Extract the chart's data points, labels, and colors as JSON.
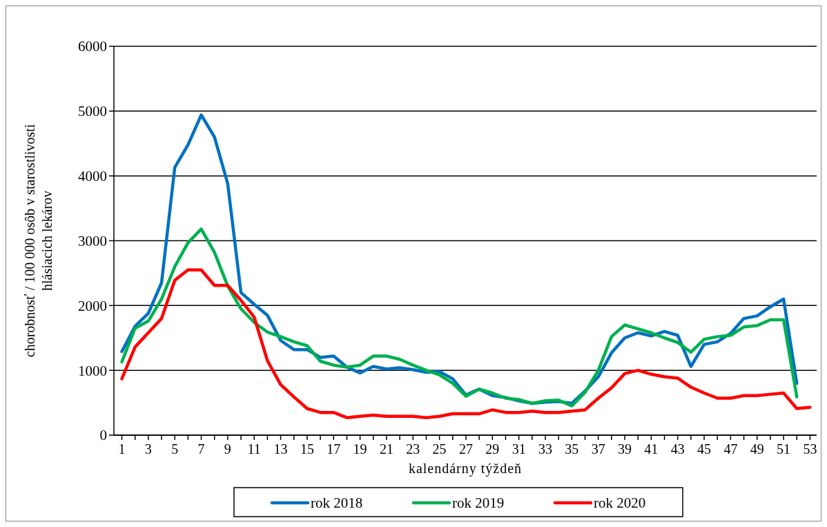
{
  "chart_data": {
    "type": "line",
    "xlabel": "kalendárny týždeň",
    "ylabel": "chorobnosť / 100 000 osôb v starostlivosti hlásiacich lekárov",
    "xlim": [
      0.4,
      53.5
    ],
    "xticks": [
      1,
      {
        "value": 2,
        "label": null
      },
      3,
      {
        "value": 4,
        "label": null
      },
      5,
      {
        "value": 6,
        "label": null
      },
      7,
      {
        "value": 8,
        "label": null
      },
      9,
      {
        "value": 10,
        "label": null
      },
      11,
      {
        "value": 12,
        "label": null
      },
      13,
      {
        "value": 14,
        "label": null
      },
      15,
      {
        "value": 16,
        "label": null
      },
      17,
      {
        "value": 18,
        "label": null
      },
      19,
      {
        "value": 20,
        "label": null
      },
      21,
      {
        "value": 22,
        "label": null
      },
      23,
      {
        "value": 24,
        "label": null
      },
      25,
      {
        "value": 26,
        "label": null
      },
      27,
      {
        "value": 28,
        "label": null
      },
      29,
      {
        "value": 30,
        "label": null
      },
      31,
      {
        "value": 32,
        "label": null
      },
      33,
      {
        "value": 34,
        "label": null
      },
      35,
      {
        "value": 36,
        "label": null
      },
      37,
      {
        "value": 38,
        "label": null
      },
      39,
      {
        "value": 40,
        "label": null
      },
      41,
      {
        "value": 42,
        "label": null
      },
      43,
      {
        "value": 44,
        "label": null
      },
      45,
      {
        "value": 46,
        "label": null
      },
      47,
      {
        "value": 48,
        "label": null
      },
      49,
      {
        "value": 50,
        "label": null
      },
      51,
      {
        "value": 52,
        "label": null
      },
      53
    ],
    "ylim": [
      0,
      6000
    ],
    "yticks": [
      0,
      1000,
      2000,
      3000,
      4000,
      5000,
      6000
    ],
    "grid": "y",
    "legend": "bottom",
    "series": [
      {
        "name": "rok 2018",
        "color": "#0070c0",
        "x": [
          1,
          2,
          3,
          4,
          5,
          6,
          7,
          8,
          9,
          10,
          11,
          12,
          13,
          14,
          15,
          16,
          17,
          18,
          19,
          20,
          21,
          22,
          23,
          24,
          25,
          26,
          27,
          28,
          29,
          30,
          31,
          32,
          33,
          34,
          35,
          36,
          37,
          38,
          39,
          40,
          41,
          42,
          43,
          44,
          45,
          46,
          47,
          48,
          49,
          50,
          51,
          52
        ],
        "values": [
          1290,
          1680,
          1880,
          2350,
          4130,
          4480,
          4940,
          4600,
          3880,
          2200,
          2020,
          1850,
          1460,
          1320,
          1320,
          1200,
          1220,
          1050,
          960,
          1060,
          1020,
          1040,
          1010,
          970,
          980,
          870,
          620,
          710,
          610,
          580,
          530,
          490,
          510,
          520,
          490,
          680,
          900,
          1270,
          1500,
          1580,
          1530,
          1600,
          1540,
          1060,
          1400,
          1440,
          1570,
          1800,
          1840,
          1980,
          2100,
          800
        ]
      },
      {
        "name": "rok 2019",
        "color": "#00b050",
        "x": [
          1,
          2,
          3,
          4,
          5,
          6,
          7,
          8,
          9,
          10,
          11,
          12,
          13,
          14,
          15,
          16,
          17,
          18,
          19,
          20,
          21,
          22,
          23,
          24,
          25,
          26,
          27,
          28,
          29,
          30,
          31,
          32,
          33,
          34,
          35,
          36,
          37,
          38,
          39,
          40,
          41,
          42,
          43,
          44,
          45,
          46,
          47,
          48,
          49,
          50,
          51,
          52
        ],
        "values": [
          1130,
          1650,
          1760,
          2100,
          2600,
          2970,
          3180,
          2820,
          2300,
          1950,
          1740,
          1590,
          1520,
          1440,
          1380,
          1140,
          1080,
          1050,
          1080,
          1220,
          1220,
          1170,
          1080,
          1000,
          930,
          800,
          600,
          710,
          650,
          570,
          550,
          490,
          530,
          540,
          450,
          660,
          1000,
          1520,
          1700,
          1640,
          1580,
          1500,
          1430,
          1280,
          1480,
          1520,
          1540,
          1670,
          1690,
          1780,
          1780,
          590
        ]
      },
      {
        "name": "rok 2020",
        "color": "#ff0000",
        "x": [
          1,
          2,
          3,
          4,
          5,
          6,
          7,
          8,
          9,
          10,
          11,
          12,
          13,
          14,
          15,
          16,
          17,
          18,
          19,
          20,
          21,
          22,
          23,
          24,
          25,
          26,
          27,
          28,
          29,
          30,
          31,
          32,
          33,
          34,
          35,
          36,
          37,
          38,
          39,
          40,
          41,
          42,
          43,
          44,
          45,
          46,
          47,
          48,
          49,
          50,
          51,
          52,
          53
        ],
        "values": [
          870,
          1360,
          1580,
          1800,
          2390,
          2550,
          2550,
          2310,
          2310,
          2080,
          1820,
          1150,
          780,
          590,
          410,
          350,
          350,
          270,
          290,
          310,
          290,
          290,
          290,
          270,
          290,
          330,
          330,
          330,
          390,
          350,
          350,
          370,
          350,
          350,
          370,
          390,
          570,
          730,
          950,
          1000,
          940,
          900,
          880,
          740,
          650,
          570,
          570,
          610,
          610,
          630,
          650,
          410,
          430
        ]
      }
    ]
  }
}
